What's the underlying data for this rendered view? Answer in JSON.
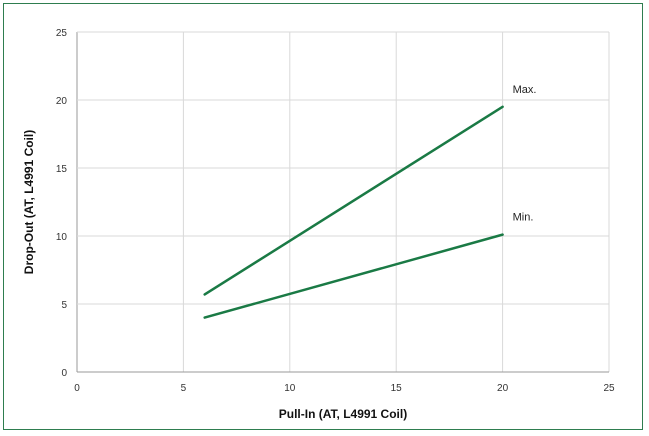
{
  "chart_data": {
    "type": "line",
    "title": "",
    "xlabel": "Pull-In (AT, L4991 Coil)",
    "ylabel": "Drop-Out (AT, L4991 Coil)",
    "xlim": [
      0,
      25
    ],
    "ylim": [
      0,
      25
    ],
    "xticks": [
      0,
      5,
      10,
      15,
      20,
      25
    ],
    "yticks": [
      0,
      5,
      10,
      15,
      20,
      25
    ],
    "grid": true,
    "line_color": "#1a7a45",
    "series": [
      {
        "name": "Max.",
        "x": [
          6,
          20
        ],
        "y": [
          5.7,
          19.5
        ]
      },
      {
        "name": "Min.",
        "x": [
          6,
          20
        ],
        "y": [
          4.0,
          10.1
        ]
      }
    ]
  }
}
